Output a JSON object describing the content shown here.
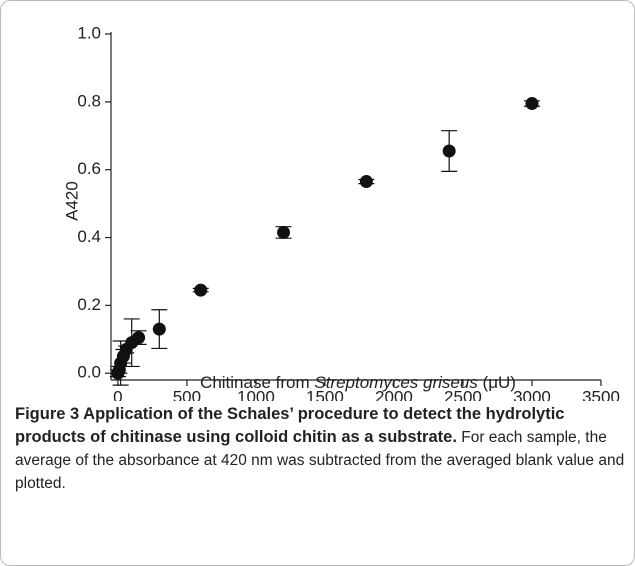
{
  "chart_data": {
    "type": "scatter",
    "x_label_parts": [
      "Chitinase from ",
      "Streptomyces griseus",
      " (μU)"
    ],
    "y_label": "A420",
    "x": [
      0,
      10,
      20,
      40,
      60,
      100,
      150,
      300,
      600,
      1200,
      1800,
      2400,
      3000
    ],
    "values": [
      0.0,
      0.01,
      0.03,
      0.05,
      0.07,
      0.09,
      0.105,
      0.13,
      0.245,
      0.415,
      0.565,
      0.655,
      0.795
    ],
    "errors": [
      0.01,
      0.01,
      0.065,
      0.02,
      0.01,
      0.07,
      0.02,
      0.057,
      0.005,
      0.017,
      0.006,
      0.06,
      0.008
    ],
    "color": "#111111",
    "xlim": [
      -50,
      3500
    ],
    "ylim": [
      -0.02,
      1.0
    ],
    "xticks": [
      0,
      500,
      1000,
      1500,
      2000,
      2500,
      3000,
      3500
    ],
    "yticks": [
      {
        "value": 0,
        "label": "0.0"
      },
      0.2,
      0.4,
      0.6,
      0.8,
      {
        "value": 1,
        "label": "1.0"
      }
    ]
  },
  "caption": {
    "title": "Figure 3 Application of the Schales’ procedure to detect the hydrolytic products of chitinase using colloid chitin as a substrate.",
    "text": "For each sample, the average of the absorbance at 420 nm was subtracted from the averaged blank value and plotted."
  }
}
